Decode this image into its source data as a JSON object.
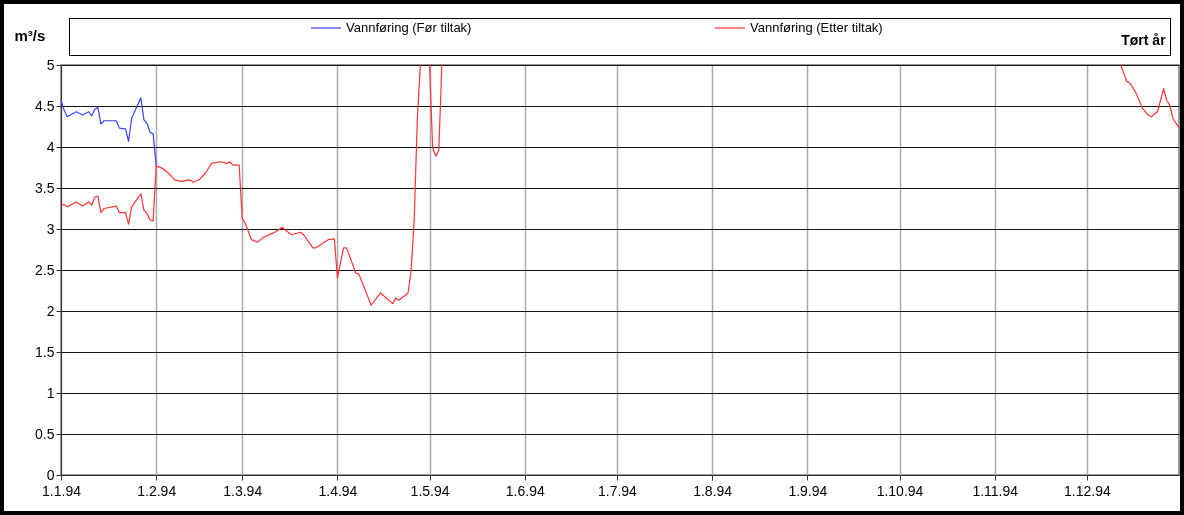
{
  "chart_data": {
    "type": "line",
    "title": "Tørt år",
    "ylabel": "m³/s",
    "xlim": [
      "1994-01-01",
      "1994-12-31"
    ],
    "xticks": [
      {
        "value": "1994-01-01",
        "label": "1.1.94"
      },
      {
        "value": "1994-02-01",
        "label": "1.2.94"
      },
      {
        "value": "1994-03-01",
        "label": "1.3.94"
      },
      {
        "value": "1994-04-01",
        "label": "1.4.94"
      },
      {
        "value": "1994-05-01",
        "label": "1.5.94"
      },
      {
        "value": "1994-06-01",
        "label": "1.6.94"
      },
      {
        "value": "1994-07-01",
        "label": "1.7.94"
      },
      {
        "value": "1994-08-01",
        "label": "1.8.94"
      },
      {
        "value": "1994-09-01",
        "label": "1.9.94"
      },
      {
        "value": "1994-10-01",
        "label": "1.10.94"
      },
      {
        "value": "1994-11-01",
        "label": "1.11.94"
      },
      {
        "value": "1994-12-01",
        "label": "1.12.94"
      }
    ],
    "ylim": [
      0,
      5
    ],
    "yticks": [
      0,
      0.5,
      1,
      1.5,
      2,
      2.5,
      3,
      3.5,
      4,
      4.5,
      5
    ],
    "grid": true,
    "legend": "top",
    "line_style": "solid",
    "marker": "none",
    "series": [
      {
        "name": "Vannføring (Før tiltak)",
        "color": "#3344ff",
        "x": [
          "1994-01-01",
          "1994-01-02",
          "1994-01-03",
          "1994-01-06",
          "1994-01-08",
          "1994-01-10",
          "1994-01-11",
          "1994-01-12",
          "1994-01-13",
          "1994-01-14",
          "1994-01-15",
          "1994-01-19",
          "1994-01-20",
          "1994-01-22",
          "1994-01-23",
          "1994-01-24",
          "1994-01-27",
          "1994-01-28",
          "1994-01-29",
          "1994-01-30",
          "1994-01-31",
          "1994-02-01"
        ],
        "values": [
          4.57,
          4.45,
          4.37,
          4.43,
          4.39,
          4.43,
          4.38,
          4.46,
          4.48,
          4.28,
          4.32,
          4.32,
          4.23,
          4.22,
          4.07,
          4.35,
          4.6,
          4.33,
          4.29,
          4.18,
          4.16,
          3.77
        ]
      },
      {
        "name": "Vannføring (Etter tiltak)",
        "color": "#ff3333",
        "x": [
          "1994-01-01",
          "1994-01-02",
          "1994-01-03",
          "1994-01-06",
          "1994-01-08",
          "1994-01-10",
          "1994-01-11",
          "1994-01-12",
          "1994-01-13",
          "1994-01-14",
          "1994-01-15",
          "1994-01-19",
          "1994-01-20",
          "1994-01-22",
          "1994-01-23",
          "1994-01-24",
          "1994-01-27",
          "1994-01-28",
          "1994-01-29",
          "1994-01-30",
          "1994-01-31",
          "1994-02-01",
          "1994-02-03",
          "1994-02-05",
          "1994-02-07",
          "1994-02-09",
          "1994-02-12",
          "1994-02-13",
          "1994-02-15",
          "1994-02-17",
          "1994-02-19",
          "1994-02-22",
          "1994-02-24",
          "1994-02-25",
          "1994-02-26",
          "1994-02-28",
          "1994-03-01",
          "1994-03-02",
          "1994-03-04",
          "1994-03-06",
          "1994-03-08",
          "1994-03-11",
          "1994-03-12",
          "1994-03-14",
          "1994-03-17",
          "1994-03-20",
          "1994-03-21",
          "1994-03-24",
          "1994-03-25",
          "1994-03-27",
          "1994-03-29",
          "1994-03-31",
          "1994-04-01",
          "1994-04-03",
          "1994-04-04",
          "1994-04-07",
          "1994-04-08",
          "1994-04-10",
          "1994-04-12",
          "1994-04-15",
          "1994-04-19",
          "1994-04-20",
          "1994-04-21",
          "1994-04-24",
          "1994-04-25",
          "1994-04-26",
          "1994-04-27",
          "1994-04-28",
          "1994-04-29",
          "1994-05-01",
          "1994-05-02",
          "1994-05-03",
          "1994-05-04",
          "1994-05-05",
          "1994-05-06",
          "1994-12-12",
          "1994-12-14",
          "1994-12-15",
          "1994-12-17",
          "1994-12-19",
          "1994-12-21",
          "1994-12-22",
          "1994-12-24",
          "1994-12-26",
          "1994-12-27",
          "1994-12-28",
          "1994-12-29",
          "1994-12-30",
          "1994-12-31"
        ],
        "values": [
          3.29,
          3.3,
          3.27,
          3.33,
          3.28,
          3.33,
          3.29,
          3.39,
          3.4,
          3.2,
          3.25,
          3.28,
          3.2,
          3.2,
          3.06,
          3.27,
          3.43,
          3.23,
          3.19,
          3.11,
          3.1,
          3.77,
          3.74,
          3.68,
          3.6,
          3.58,
          3.6,
          3.57,
          3.6,
          3.68,
          3.8,
          3.82,
          3.8,
          3.82,
          3.78,
          3.78,
          3.13,
          3.07,
          2.87,
          2.84,
          2.9,
          2.95,
          2.97,
          3.02,
          2.93,
          2.96,
          2.93,
          2.77,
          2.77,
          2.82,
          2.87,
          2.88,
          2.4,
          2.77,
          2.77,
          2.46,
          2.45,
          2.26,
          2.07,
          2.22,
          2.09,
          2.16,
          2.13,
          2.22,
          2.5,
          3.11,
          4.33,
          5,
          null,
          5,
          3.99,
          3.89,
          3.96,
          5,
          null,
          5,
          4.8,
          4.78,
          4.66,
          4.48,
          4.39,
          4.37,
          4.43,
          4.71,
          4.57,
          4.51,
          4.35,
          4.29,
          4.24
        ]
      }
    ]
  }
}
